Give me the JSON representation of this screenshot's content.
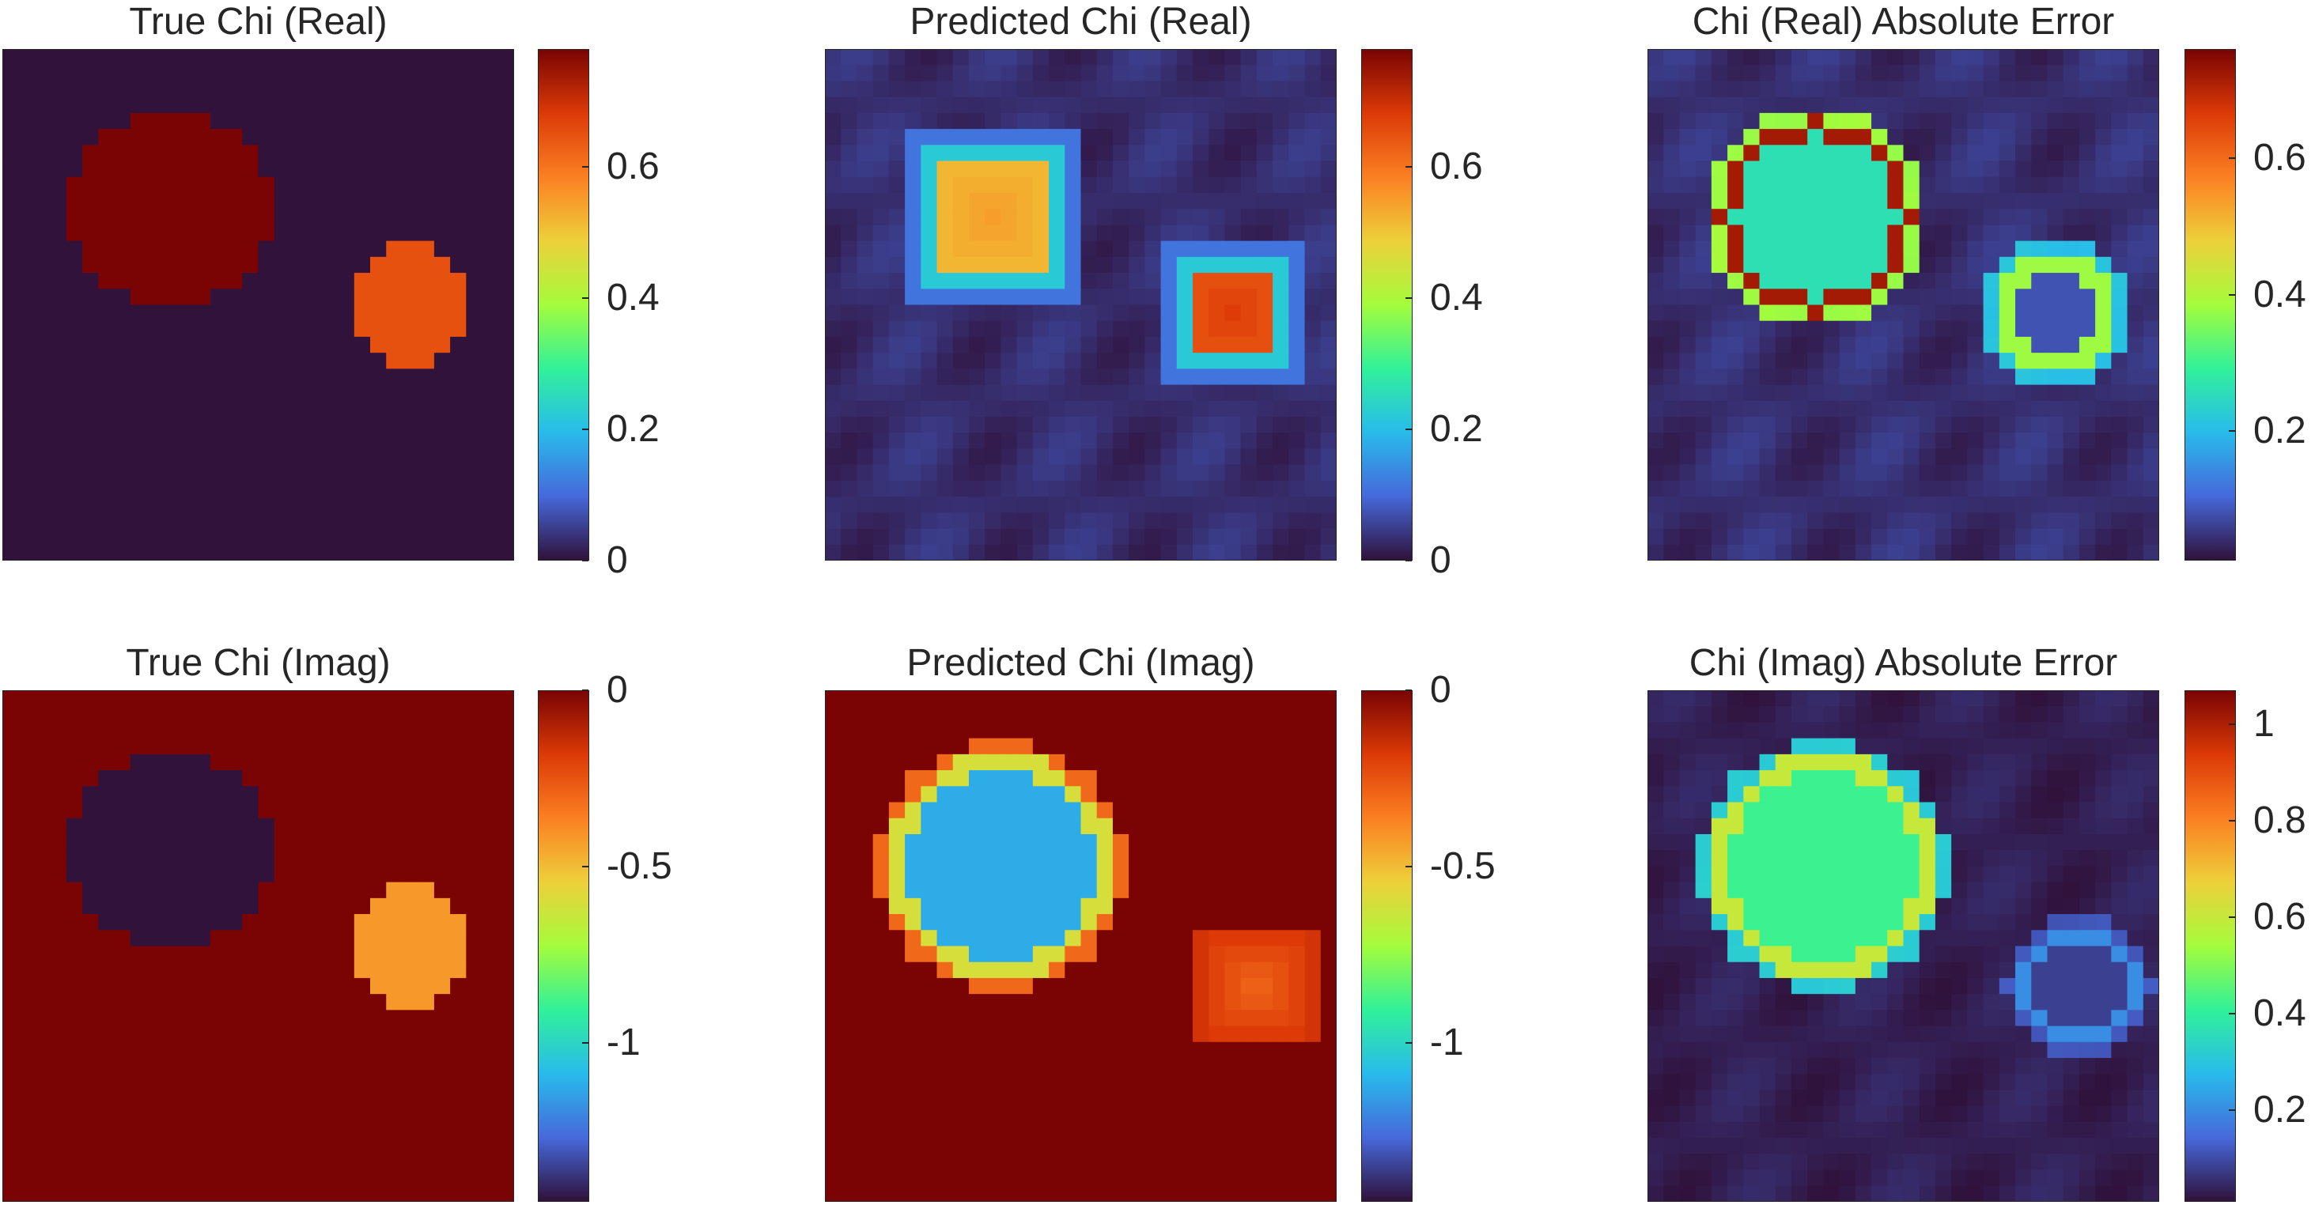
{
  "colors": {
    "background": "#ffffff",
    "axis": "#262626",
    "turbo_stops": [
      "#30123b",
      "#4669db",
      "#28bbeb",
      "#31f199",
      "#a4fc3c",
      "#edd03a",
      "#fb8022",
      "#dc3a07",
      "#7a0403"
    ]
  },
  "chart_data": [
    {
      "type": "heatmap",
      "title": "True Chi (Real)",
      "colorbar": {
        "min": 0,
        "max": 0.78,
        "ticks": [
          0,
          0.2,
          0.4,
          0.6
        ],
        "tick_labels": [
          "0",
          "0.2",
          "0.4",
          "0.6"
        ]
      },
      "grid_size": 32,
      "scatterers": [
        {
          "label": "large disc",
          "center": [
            10.5,
            10.0
          ],
          "radius": 6.2,
          "value": 0.78,
          "kind": "disc"
        },
        {
          "label": "small disc",
          "center": [
            25.5,
            16.0
          ],
          "radius": 3.7,
          "value": 0.65,
          "kind": "disc"
        }
      ],
      "background_value": 0.0
    },
    {
      "type": "heatmap",
      "title": "Predicted Chi (Real)",
      "colorbar": {
        "min": 0,
        "max": 0.78,
        "ticks": [
          0,
          0.2,
          0.4,
          0.6
        ],
        "tick_labels": [
          "0",
          "0.2",
          "0.4",
          "0.6"
        ]
      },
      "grid_size": 32,
      "scatterers": [
        {
          "label": "large blob",
          "center": [
            10.5,
            10.5
          ],
          "radius": 4.8,
          "value": 0.55,
          "rim_value": 0.22,
          "kind": "square"
        },
        {
          "label": "small blob",
          "center": [
            25.5,
            16.5
          ],
          "radius": 3.8,
          "value": 0.68,
          "rim_value": 0.22,
          "kind": "square"
        }
      ],
      "background_value": 0.03
    },
    {
      "type": "heatmap",
      "title": "Chi (Real) Absolute Error",
      "colorbar": {
        "min": 0.01,
        "max": 0.76,
        "ticks": [
          0.2,
          0.4,
          0.6
        ],
        "tick_labels": [
          "0.2",
          "0.4",
          "0.6"
        ]
      },
      "grid_size": 32,
      "scatterers": [
        {
          "label": "large ring",
          "center": [
            10.5,
            10.5
          ],
          "radius": 6.0,
          "value": 0.26,
          "rim_value": 0.72,
          "kind": "ring"
        },
        {
          "label": "small ring",
          "center": [
            25.5,
            16.5
          ],
          "radius": 3.8,
          "value": 0.08,
          "rim_value": 0.38,
          "kind": "ring"
        }
      ],
      "background_value": 0.04
    },
    {
      "type": "heatmap",
      "title": "True Chi (Imag)",
      "colorbar": {
        "min": -1.45,
        "max": 0,
        "ticks": [
          -1,
          -0.5,
          0
        ],
        "tick_labels": [
          "-1",
          "-0.5",
          "0"
        ]
      },
      "grid_size": 32,
      "scatterers": [
        {
          "label": "large disc",
          "center": [
            10.5,
            10.0
          ],
          "radius": 6.2,
          "value": -1.45,
          "kind": "disc"
        },
        {
          "label": "small disc",
          "center": [
            25.5,
            16.0
          ],
          "radius": 3.7,
          "value": -0.42,
          "kind": "disc"
        }
      ],
      "background_value": 0.0
    },
    {
      "type": "heatmap",
      "title": "Predicted Chi (Imag)",
      "colorbar": {
        "min": -1.45,
        "max": 0,
        "ticks": [
          -1,
          -0.5,
          0
        ],
        "tick_labels": [
          "-1",
          "-0.5",
          "0"
        ]
      },
      "grid_size": 32,
      "scatterers": [
        {
          "label": "large disc",
          "center": [
            11.0,
            11.0
          ],
          "radius": 7.0,
          "value": -1.12,
          "rim_value": -0.6,
          "kind": "ring"
        },
        {
          "label": "small blob",
          "center": [
            27.0,
            18.5
          ],
          "radius": 3.8,
          "value": -0.3,
          "kind": "blur"
        }
      ],
      "background_value": 0.0
    },
    {
      "type": "heatmap",
      "title": "Chi (Imag) Absolute Error",
      "colorbar": {
        "min": 0.01,
        "max": 1.07,
        "ticks": [
          0.2,
          0.4,
          0.6,
          0.8,
          1
        ],
        "tick_labels": [
          "0.2",
          "0.4",
          "0.6",
          "0.8",
          "1"
        ]
      },
      "grid_size": 32,
      "scatterers": [
        {
          "label": "large ring",
          "center": [
            11.0,
            11.0
          ],
          "radius": 7.0,
          "value": 0.42,
          "rim_value": 0.6,
          "kind": "ring"
        },
        {
          "label": "small ring",
          "center": [
            27.0,
            18.5
          ],
          "radius": 3.8,
          "value": 0.08,
          "rim_value": 0.2,
          "kind": "ring"
        }
      ],
      "background_value": 0.03
    }
  ]
}
